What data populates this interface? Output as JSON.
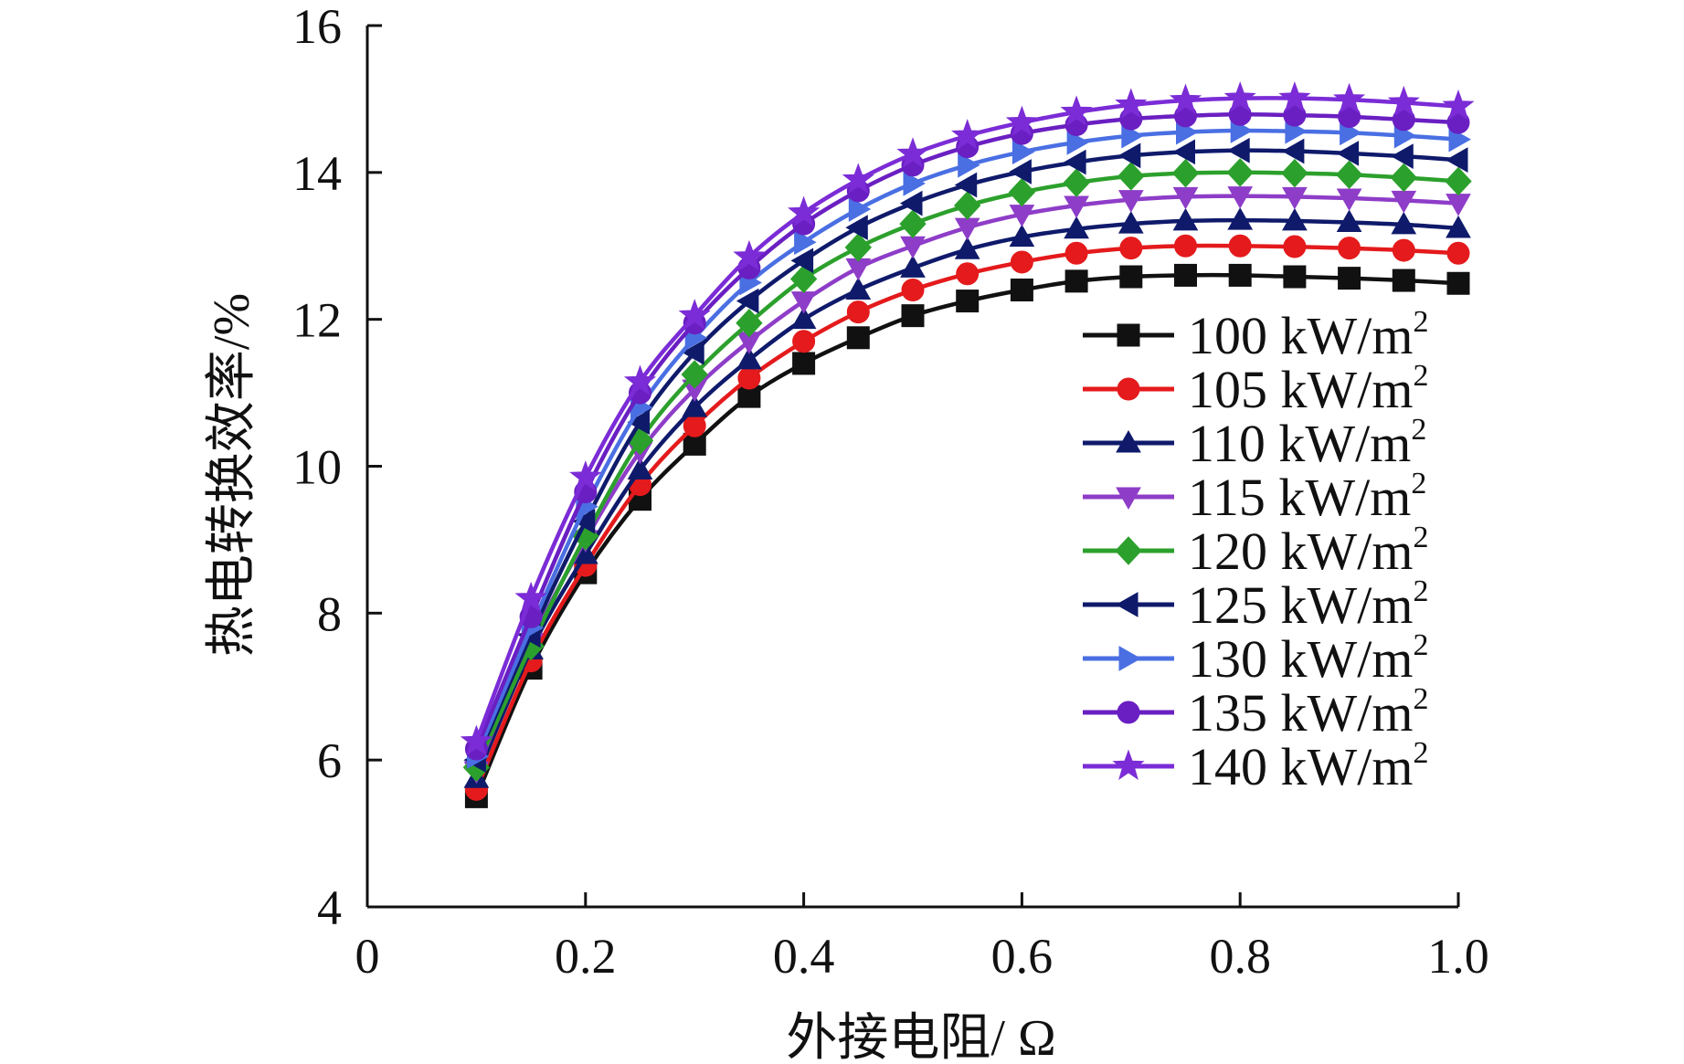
{
  "chart_data": {
    "type": "line",
    "title": "",
    "xlabel": "外接电阻/ Ω",
    "ylabel": "热电转换效率/%",
    "xlim": [
      0,
      1.0
    ],
    "ylim": [
      4,
      16
    ],
    "x_ticks": [
      {
        "value": 0,
        "label": "0"
      },
      {
        "value": 0.2,
        "label": "0.2"
      },
      {
        "value": 0.4,
        "label": "0.4"
      },
      {
        "value": 0.6,
        "label": "0.6"
      },
      {
        "value": 0.8,
        "label": "0.8"
      },
      {
        "value": 1.0,
        "label": "1.0"
      }
    ],
    "y_ticks": [
      {
        "value": 4,
        "label": "4"
      },
      {
        "value": 6,
        "label": "6"
      },
      {
        "value": 8,
        "label": "8"
      },
      {
        "value": 10,
        "label": "10"
      },
      {
        "value": 12,
        "label": "12"
      },
      {
        "value": 14,
        "label": "14"
      },
      {
        "value": 16,
        "label": "16"
      }
    ],
    "grid": false,
    "legend_position": "right",
    "x": [
      0.1,
      0.15,
      0.2,
      0.25,
      0.3,
      0.35,
      0.4,
      0.45,
      0.5,
      0.55,
      0.6,
      0.65,
      0.7,
      0.75,
      0.8,
      0.85,
      0.9,
      0.95,
      1.0
    ],
    "series": [
      {
        "name": "100 kW/m",
        "sup": "2",
        "color": "#111111",
        "marker": "square",
        "values": [
          5.5,
          7.25,
          8.55,
          9.55,
          10.3,
          10.95,
          11.4,
          11.75,
          12.05,
          12.25,
          12.4,
          12.52,
          12.58,
          12.6,
          12.6,
          12.58,
          12.56,
          12.53,
          12.49
        ]
      },
      {
        "name": "105 kW/m",
        "sup": "2",
        "color": "#e41a1c",
        "marker": "circle",
        "values": [
          5.6,
          7.35,
          8.65,
          9.75,
          10.55,
          11.2,
          11.7,
          12.1,
          12.4,
          12.62,
          12.78,
          12.9,
          12.97,
          13.0,
          13.0,
          12.99,
          12.97,
          12.94,
          12.9
        ]
      },
      {
        "name": "110 kW/m",
        "sup": "2",
        "color": "#0f1a6b",
        "marker": "triangle-up",
        "values": [
          5.75,
          7.5,
          8.8,
          9.95,
          10.8,
          11.45,
          12.0,
          12.4,
          12.7,
          12.95,
          13.12,
          13.23,
          13.3,
          13.34,
          13.35,
          13.34,
          13.32,
          13.29,
          13.24
        ]
      },
      {
        "name": "115 kW/m",
        "sup": "2",
        "color": "#8e3dc8",
        "marker": "triangle-down",
        "values": [
          5.85,
          7.6,
          9.0,
          10.2,
          11.05,
          11.7,
          12.25,
          12.7,
          13.0,
          13.25,
          13.43,
          13.55,
          13.63,
          13.67,
          13.68,
          13.67,
          13.65,
          13.62,
          13.58
        ]
      },
      {
        "name": "120 kW/m",
        "sup": "2",
        "color": "#2ca02c",
        "marker": "diamond",
        "values": [
          5.9,
          7.55,
          9.05,
          10.35,
          11.25,
          11.95,
          12.55,
          12.98,
          13.3,
          13.55,
          13.73,
          13.86,
          13.95,
          13.99,
          14.0,
          13.99,
          13.97,
          13.93,
          13.88
        ]
      },
      {
        "name": "125 kW/m",
        "sup": "2",
        "color": "#0f1a6b",
        "marker": "triangle-left",
        "values": [
          6.0,
          7.7,
          9.25,
          10.6,
          11.55,
          12.25,
          12.8,
          13.25,
          13.58,
          13.83,
          14.01,
          14.14,
          14.23,
          14.28,
          14.3,
          14.29,
          14.26,
          14.22,
          14.17
        ]
      },
      {
        "name": "130 kW/m",
        "sup": "2",
        "color": "#4a6fe3",
        "marker": "triangle-right",
        "values": [
          6.05,
          7.8,
          9.45,
          10.8,
          11.75,
          12.5,
          13.05,
          13.5,
          13.85,
          14.1,
          14.28,
          14.41,
          14.5,
          14.55,
          14.57,
          14.56,
          14.54,
          14.5,
          14.45
        ]
      },
      {
        "name": "135 kW/m",
        "sup": "2",
        "color": "#6a1fc2",
        "marker": "circle",
        "values": [
          6.15,
          7.95,
          9.65,
          11.0,
          11.95,
          12.7,
          13.3,
          13.75,
          14.1,
          14.35,
          14.53,
          14.65,
          14.73,
          14.77,
          14.79,
          14.78,
          14.76,
          14.72,
          14.68
        ]
      },
      {
        "name": "140 kW/m",
        "sup": "2",
        "color": "#7b2cd6",
        "marker": "star",
        "values": [
          6.25,
          8.2,
          9.85,
          11.15,
          12.05,
          12.85,
          13.45,
          13.9,
          14.25,
          14.5,
          14.68,
          14.82,
          14.92,
          14.98,
          15.01,
          15.01,
          14.99,
          14.95,
          14.9
        ]
      }
    ]
  }
}
